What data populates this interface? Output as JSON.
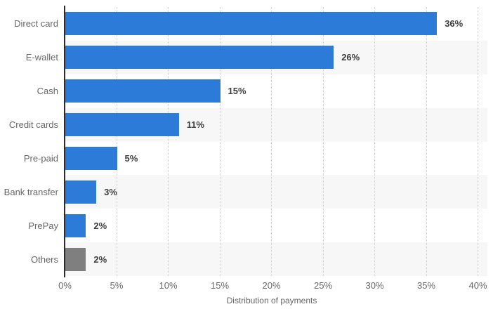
{
  "chart_data": {
    "type": "bar",
    "orientation": "horizontal",
    "title": "",
    "xlabel": "Distribution of payments",
    "ylabel": "",
    "xlim": [
      0,
      40
    ],
    "x_tick_step": 5,
    "x_ticks": [
      "0%",
      "5%",
      "10%",
      "15%",
      "20%",
      "25%",
      "30%",
      "35%",
      "40%"
    ],
    "grid": "vertical-dotted",
    "legend": "none",
    "categories": [
      "Direct card",
      "E-wallet",
      "Cash",
      "Credit cards",
      "Pre-paid",
      "Bank transfer",
      "PrePay",
      "Others"
    ],
    "values": [
      36,
      26,
      15,
      11,
      5,
      3,
      2,
      2
    ],
    "value_labels": [
      "36%",
      "26%",
      "15%",
      "11%",
      "5%",
      "3%",
      "2%",
      "2%"
    ],
    "bar_colors": [
      "#2d7bd8",
      "#2d7bd8",
      "#2d7bd8",
      "#2d7bd8",
      "#2d7bd8",
      "#2d7bd8",
      "#2d7bd8",
      "#7f7f7f"
    ]
  },
  "style_colors": {
    "bar_blue": "#2d7bd8",
    "bar_gray": "#7f7f7f",
    "row_band": "#f7f7f7",
    "gridline": "#cccccc",
    "axis_line": "#2b2b2b",
    "category_text": "#666666",
    "value_text": "#3d3d3d"
  }
}
